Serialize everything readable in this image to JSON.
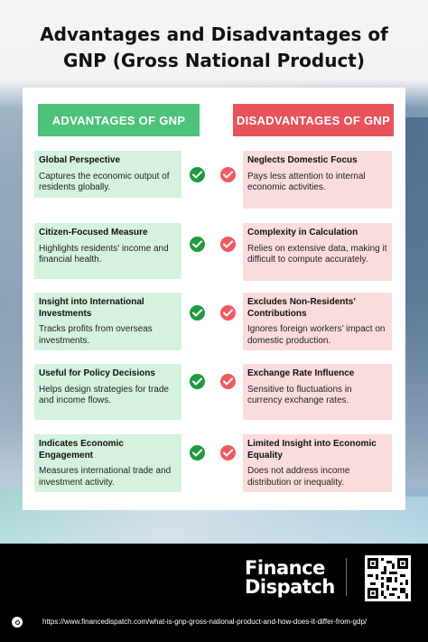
{
  "title": {
    "line1": "Advantages and Disadvantages of",
    "line2": "GNP (Gross National Product)"
  },
  "headers": {
    "advantages": "ADVANTAGES OF GNP",
    "disadvantages": "DISADVANTAGES OF GNP"
  },
  "colors": {
    "advantage_accent": "#4cc27a",
    "advantage_bg": "#d5f2de",
    "disadvantage_accent": "#e8525a",
    "disadvantage_bg": "#fbdcdc",
    "check_green": "#1f9a3f",
    "check_red": "#f05a5f"
  },
  "icons": {
    "advantage": "check-circle-green-icon",
    "disadvantage": "check-circle-red-icon"
  },
  "rows": [
    {
      "adv": {
        "title": "Global Perspective",
        "desc": "Captures the economic output of residents globally."
      },
      "dis": {
        "title": "Neglects Domestic Focus",
        "desc": "Pays less attention to internal economic activities."
      }
    },
    {
      "adv": {
        "title": "Citizen-Focused Measure",
        "desc": "Highlights residents' income and financial health."
      },
      "dis": {
        "title": "Complexity in Calculation",
        "desc": "Relies on extensive data, making it difficult to compute accurately."
      }
    },
    {
      "adv": {
        "title": "Insight into International Investments",
        "desc": "Tracks profits from overseas investments."
      },
      "dis": {
        "title": "Excludes Non-Residents’ Contributions",
        "desc": "Ignores foreign workers’ impact on domestic production."
      }
    },
    {
      "adv": {
        "title": "Useful for Policy Decisions",
        "desc": "Helps design strategies for trade and income flows."
      },
      "dis": {
        "title": "Exchange Rate Influence",
        "desc": "Sensitive to fluctuations in currency exchange rates."
      }
    },
    {
      "adv": {
        "title": "Indicates Economic Engagement",
        "desc": "Measures international trade and investment activity."
      },
      "dis": {
        "title": "Limited Insight into Economic Equality",
        "desc": "Does not address income distribution or inequality."
      }
    }
  ],
  "footer": {
    "logo_line1": "Finance",
    "logo_line2": "Dispatch",
    "url": "https://www.financedispatch.com/what-is-gnp-gross-national-product-and-how-does-it-differ-from-gdp/",
    "qr_icon": "qr-code-icon",
    "link_icon": "link-circle-icon"
  }
}
